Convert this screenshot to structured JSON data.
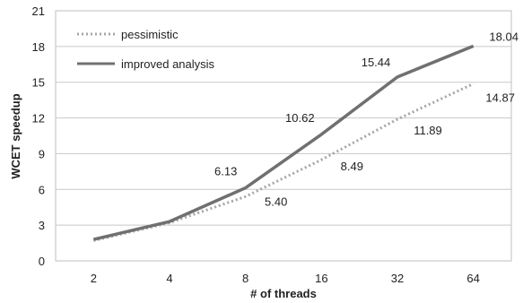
{
  "chart_data": {
    "type": "line",
    "categories": [
      "2",
      "4",
      "8",
      "16",
      "32",
      "64"
    ],
    "xlabel": "# of threads",
    "ylabel": "WCET speedup",
    "ylim": [
      0,
      21
    ],
    "yticks": [
      0,
      3,
      6,
      9,
      12,
      15,
      18,
      21
    ],
    "grid": true,
    "legend_position": "top-left",
    "series": [
      {
        "name": "pessimistic",
        "style": "dotted",
        "color": "#a6a6a6",
        "values": [
          1.7,
          3.2,
          5.4,
          8.49,
          11.89,
          14.87
        ],
        "labels": [
          "",
          "",
          "5.40",
          "8.49",
          "11.89",
          "14.87"
        ]
      },
      {
        "name": "improved analysis",
        "style": "solid",
        "color": "#707070",
        "values": [
          1.8,
          3.3,
          6.13,
          10.62,
          15.44,
          18.04
        ],
        "labels": [
          "",
          "",
          "6.13",
          "10.62",
          "15.44",
          "18.04"
        ]
      }
    ]
  }
}
